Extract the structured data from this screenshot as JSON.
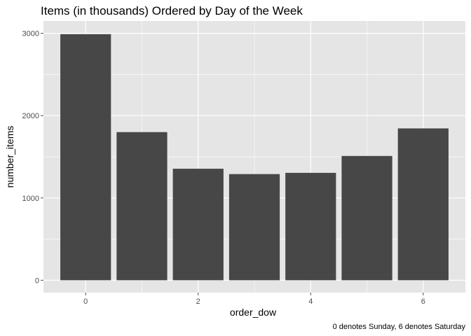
{
  "chart_data": {
    "type": "bar",
    "title": "Items (in thousands) Ordered by Day of the Week",
    "xlabel": "order_dow",
    "ylabel": "number_items",
    "caption": "0 denotes Sunday, 6 denotes Saturday",
    "categories": [
      0,
      1,
      2,
      3,
      4,
      5,
      6
    ],
    "values": [
      2990,
      1800,
      1355,
      1290,
      1305,
      1510,
      1845
    ],
    "x_ticks": [
      0,
      2,
      4,
      6
    ],
    "y_ticks": [
      0,
      1000,
      2000,
      3000
    ],
    "xlim": [
      -0.75,
      6.75
    ],
    "ylim": [
      -150,
      3150
    ],
    "grid": true,
    "colors": {
      "panel": "#e5e5e5",
      "grid_major": "#ffffff",
      "bar": "#474747",
      "tick": "#4d4d4d"
    }
  }
}
